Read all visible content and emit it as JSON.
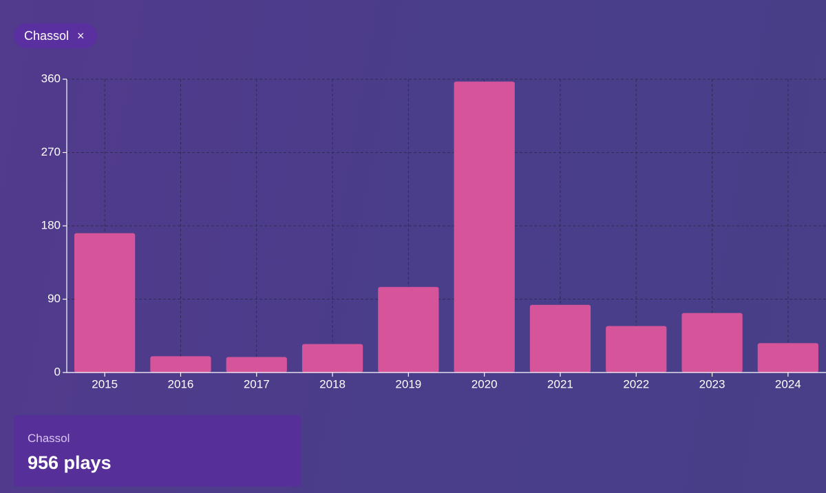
{
  "filter_chip": {
    "label": "Chassol",
    "close": "×"
  },
  "chart_data": {
    "type": "bar",
    "categories": [
      "2015",
      "2016",
      "2017",
      "2018",
      "2019",
      "2020",
      "2021",
      "2022",
      "2023",
      "2024"
    ],
    "values": [
      171,
      20,
      19,
      35,
      105,
      357,
      83,
      57,
      73,
      36
    ],
    "color": "#d6559a",
    "ylim": [
      0,
      360
    ],
    "yticks": [
      0,
      90,
      180,
      270,
      360
    ],
    "grid": true
  },
  "summary": {
    "label": "Chassol",
    "value": "956 plays"
  }
}
